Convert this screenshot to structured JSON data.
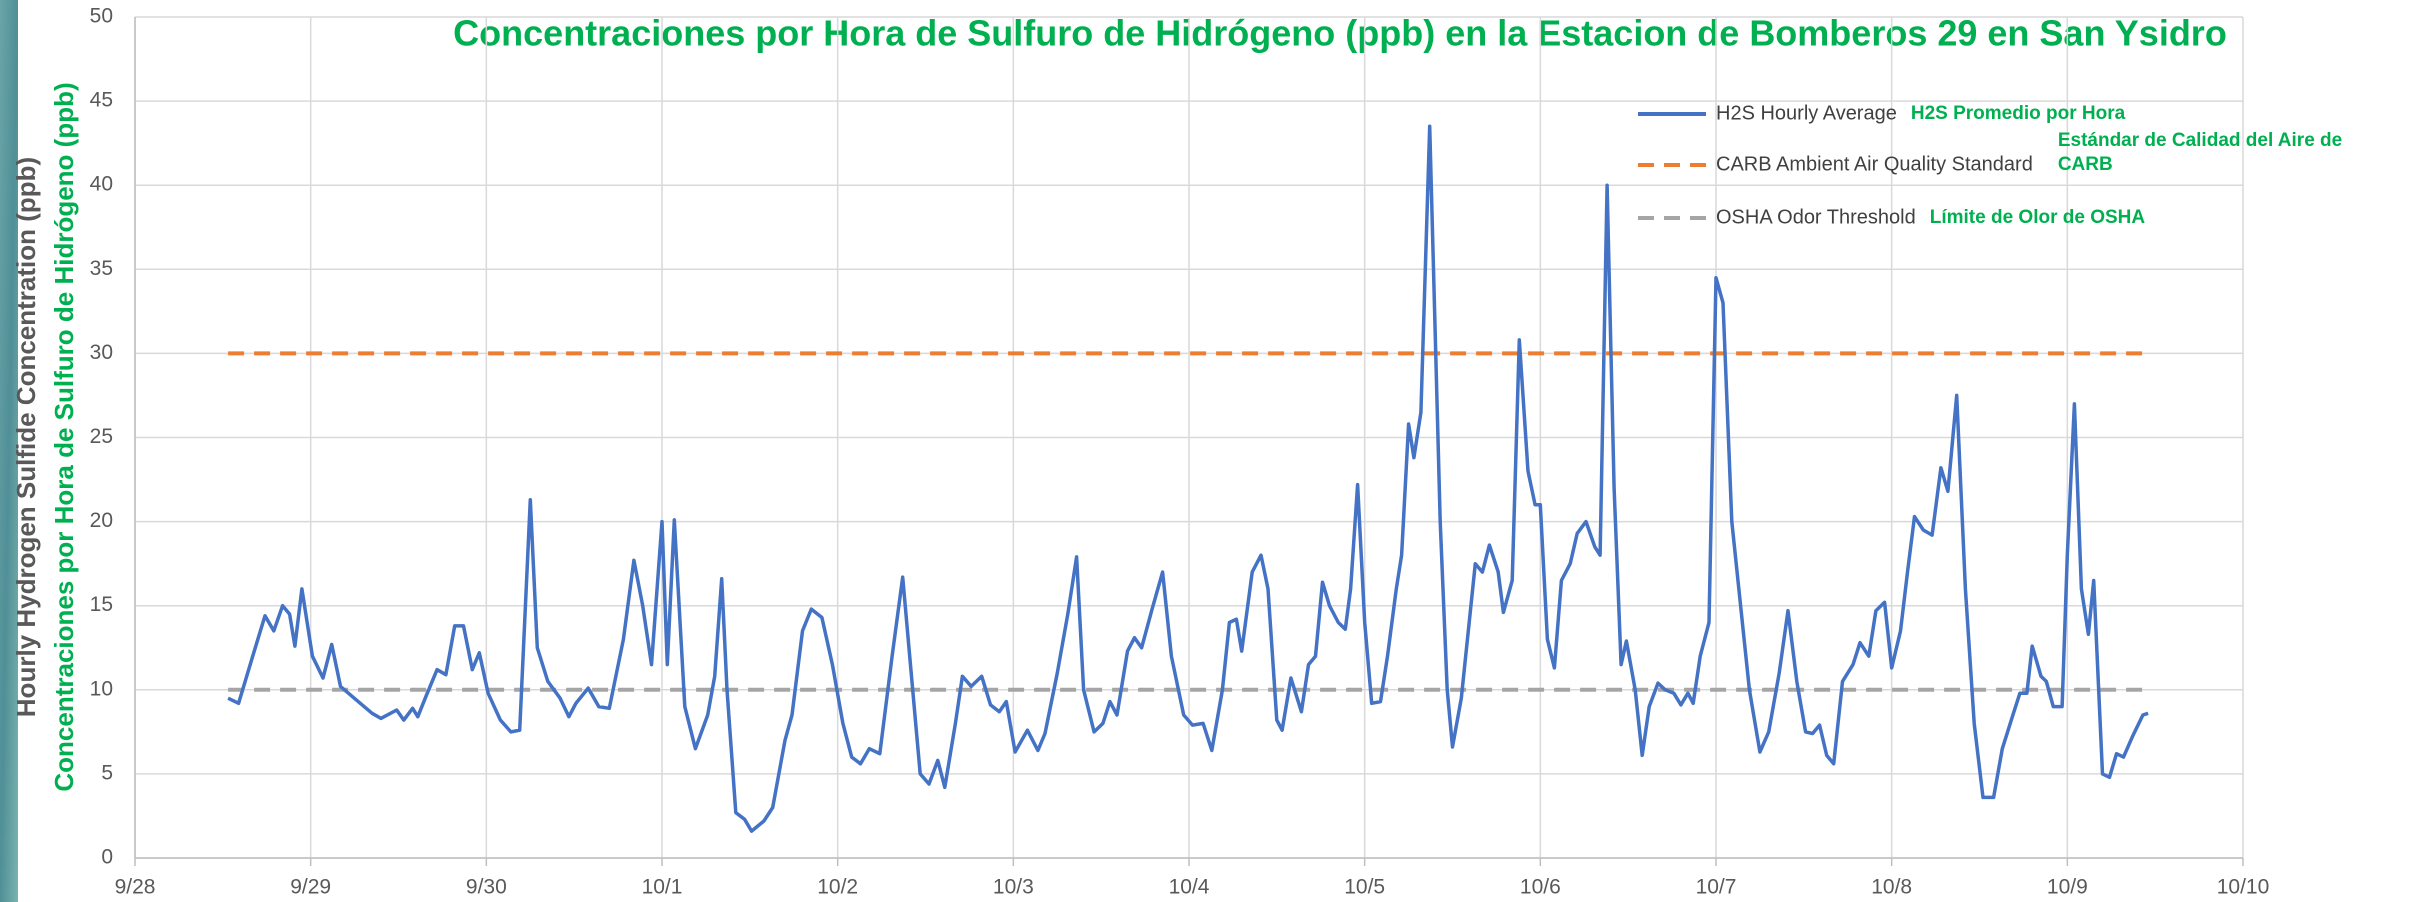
{
  "chart_data": {
    "type": "line",
    "title": "Concentraciones por Hora de Sulfuro de Hidrógeno (ppb) en la Estacion de Bomberos 29 en San Ysidro",
    "y_label": "Hourly Hydrogen Sulfide Concentration (ppb)",
    "y_label_secondary": "Concentraciones por Hora de Sulfuro de Hidrógeno (ppb)",
    "xlim": [
      0,
      12
    ],
    "xticks": [
      {
        "value": 0,
        "label": "9/28"
      },
      {
        "value": 1,
        "label": "9/29"
      },
      {
        "value": 2,
        "label": "9/30"
      },
      {
        "value": 3,
        "label": "10/1"
      },
      {
        "value": 4,
        "label": "10/2"
      },
      {
        "value": 5,
        "label": "10/3"
      },
      {
        "value": 6,
        "label": "10/4"
      },
      {
        "value": 7,
        "label": "10/5"
      },
      {
        "value": 8,
        "label": "10/6"
      },
      {
        "value": 9,
        "label": "10/7"
      },
      {
        "value": 10,
        "label": "10/8"
      },
      {
        "value": 11,
        "label": "10/9"
      },
      {
        "value": 12,
        "label": "10/10"
      }
    ],
    "ylim": [
      0,
      50
    ],
    "yticks": [
      0,
      5,
      10,
      15,
      20,
      25,
      30,
      35,
      40,
      45,
      50
    ],
    "grid": true,
    "legend_position": "upper right",
    "legend_translations": [
      "H2S Promedio por Hora",
      "Estándar de Calidad del Aire de CARB",
      "Límite de Olor de OSHA"
    ],
    "series": [
      {
        "name": "H2S Hourly Average",
        "color": "#4472c4",
        "dash": "solid",
        "x": [
          0.53,
          0.59,
          0.67,
          0.74,
          0.79,
          0.84,
          0.88,
          0.91,
          0.95,
          1.01,
          1.07,
          1.12,
          1.17,
          1.26,
          1.35,
          1.4,
          1.49,
          1.53,
          1.58,
          1.61,
          1.66,
          1.72,
          1.77,
          1.82,
          1.87,
          1.92,
          1.96,
          2.01,
          2.08,
          2.14,
          2.19,
          2.25,
          2.29,
          2.35,
          2.42,
          2.47,
          2.51,
          2.58,
          2.64,
          2.7,
          2.78,
          2.84,
          2.89,
          2.94,
          3.0,
          3.03,
          3.07,
          3.13,
          3.19,
          3.26,
          3.3,
          3.34,
          3.37,
          3.42,
          3.47,
          3.51,
          3.58,
          3.63,
          3.7,
          3.74,
          3.8,
          3.85,
          3.91,
          3.97,
          4.03,
          4.08,
          4.13,
          4.18,
          4.24,
          4.31,
          4.37,
          4.41,
          4.47,
          4.52,
          4.57,
          4.61,
          4.67,
          4.71,
          4.76,
          4.82,
          4.87,
          4.92,
          4.96,
          5.01,
          5.08,
          5.14,
          5.18,
          5.25,
          5.31,
          5.36,
          5.4,
          5.46,
          5.51,
          5.55,
          5.59,
          5.65,
          5.69,
          5.73,
          5.79,
          5.85,
          5.9,
          5.97,
          6.02,
          6.08,
          6.13,
          6.19,
          6.23,
          6.27,
          6.3,
          6.36,
          6.41,
          6.45,
          6.5,
          6.53,
          6.58,
          6.64,
          6.68,
          6.72,
          6.76,
          6.8,
          6.85,
          6.89,
          6.92,
          6.96,
          7.0,
          7.04,
          7.09,
          7.13,
          7.18,
          7.21,
          7.25,
          7.28,
          7.32,
          7.37,
          7.43,
          7.47,
          7.5,
          7.55,
          7.59,
          7.63,
          7.67,
          7.71,
          7.76,
          7.79,
          7.84,
          7.88,
          7.93,
          7.97,
          8.0,
          8.04,
          8.08,
          8.12,
          8.17,
          8.21,
          8.26,
          8.31,
          8.34,
          8.38,
          8.42,
          8.46,
          8.49,
          8.54,
          8.58,
          8.62,
          8.67,
          8.71,
          8.76,
          8.8,
          8.84,
          8.87,
          8.91,
          8.96,
          9.0,
          9.04,
          9.09,
          9.14,
          9.19,
          9.25,
          9.3,
          9.36,
          9.41,
          9.46,
          9.51,
          9.55,
          9.59,
          9.63,
          9.67,
          9.72,
          9.78,
          9.82,
          9.87,
          9.91,
          9.96,
          10.0,
          10.05,
          10.09,
          10.13,
          10.18,
          10.23,
          10.28,
          10.32,
          10.37,
          10.42,
          10.47,
          10.52,
          10.58,
          10.63,
          10.69,
          10.73,
          10.77,
          10.8,
          10.85,
          10.88,
          10.92,
          10.97,
          11.0,
          11.04,
          11.08,
          11.12,
          11.15,
          11.2,
          11.24,
          11.28,
          11.32,
          11.37,
          11.43,
          11.46
        ],
        "values": [
          9.5,
          9.2,
          12,
          14.4,
          13.5,
          15,
          14.5,
          12.6,
          16,
          12,
          10.7,
          12.7,
          10.2,
          9.4,
          8.6,
          8.3,
          8.8,
          8.2,
          8.9,
          8.4,
          9.7,
          11.2,
          10.9,
          13.8,
          13.8,
          11.2,
          12.2,
          9.8,
          8.2,
          7.5,
          7.6,
          21.3,
          12.5,
          10.5,
          9.5,
          8.4,
          9.2,
          10.1,
          9,
          8.9,
          13,
          17.7,
          15,
          11.5,
          20,
          11.5,
          20.1,
          9,
          6.5,
          8.5,
          10.8,
          16.6,
          10,
          2.7,
          2.3,
          1.6,
          2.2,
          3,
          7,
          8.5,
          13.5,
          14.8,
          14.3,
          11.5,
          8,
          6,
          5.6,
          6.5,
          6.2,
          12,
          16.7,
          12,
          5,
          4.4,
          5.8,
          4.2,
          8,
          10.8,
          10.2,
          10.8,
          9.1,
          8.7,
          9.3,
          6.3,
          7.6,
          6.4,
          7.4,
          11,
          14.5,
          17.9,
          10,
          7.5,
          8,
          9.3,
          8.5,
          12.3,
          13.1,
          12.5,
          14.8,
          17,
          12,
          8.5,
          7.9,
          8,
          6.4,
          10,
          14,
          14.2,
          12.3,
          17,
          18,
          16,
          8.2,
          7.6,
          10.7,
          8.7,
          11.5,
          12,
          16.4,
          15,
          14,
          13.6,
          16,
          22.2,
          14,
          9.2,
          9.3,
          12,
          16,
          18,
          25.8,
          23.8,
          26.5,
          43.5,
          20,
          10,
          6.6,
          9.5,
          13.5,
          17.5,
          17,
          18.6,
          17,
          14.6,
          16.5,
          30.8,
          23,
          21,
          21,
          13,
          11.3,
          16.5,
          17.5,
          19.3,
          20,
          18.5,
          18,
          40,
          22,
          11.5,
          12.9,
          10,
          6.1,
          9,
          10.4,
          10,
          9.8,
          9.1,
          9.8,
          9.2,
          12,
          14,
          34.5,
          33,
          20,
          15,
          10,
          6.3,
          7.5,
          11,
          14.7,
          10.5,
          7.5,
          7.4,
          7.9,
          6.1,
          5.6,
          10.5,
          11.5,
          12.8,
          12,
          14.7,
          15.2,
          11.3,
          13.5,
          17,
          20.3,
          19.5,
          19.2,
          23.2,
          21.8,
          27.5,
          16,
          8,
          3.6,
          3.6,
          6.5,
          8.5,
          9.8,
          9.8,
          12.6,
          10.8,
          10.5,
          9,
          9,
          18,
          27,
          16,
          13.3,
          16.5,
          5,
          4.8,
          6.2,
          6,
          7.2,
          8.5,
          8.6
        ]
      },
      {
        "name": "CARB Ambient Air Quality Standard",
        "color": "#ed7d31",
        "dash": "dashed",
        "x": [
          0.53,
          11.46
        ],
        "values": [
          30,
          30
        ]
      },
      {
        "name": "OSHA Odor Threshold",
        "color": "#a5a5a5",
        "dash": "dashed",
        "x": [
          0.53,
          11.46
        ],
        "values": [
          10,
          10
        ]
      }
    ]
  }
}
